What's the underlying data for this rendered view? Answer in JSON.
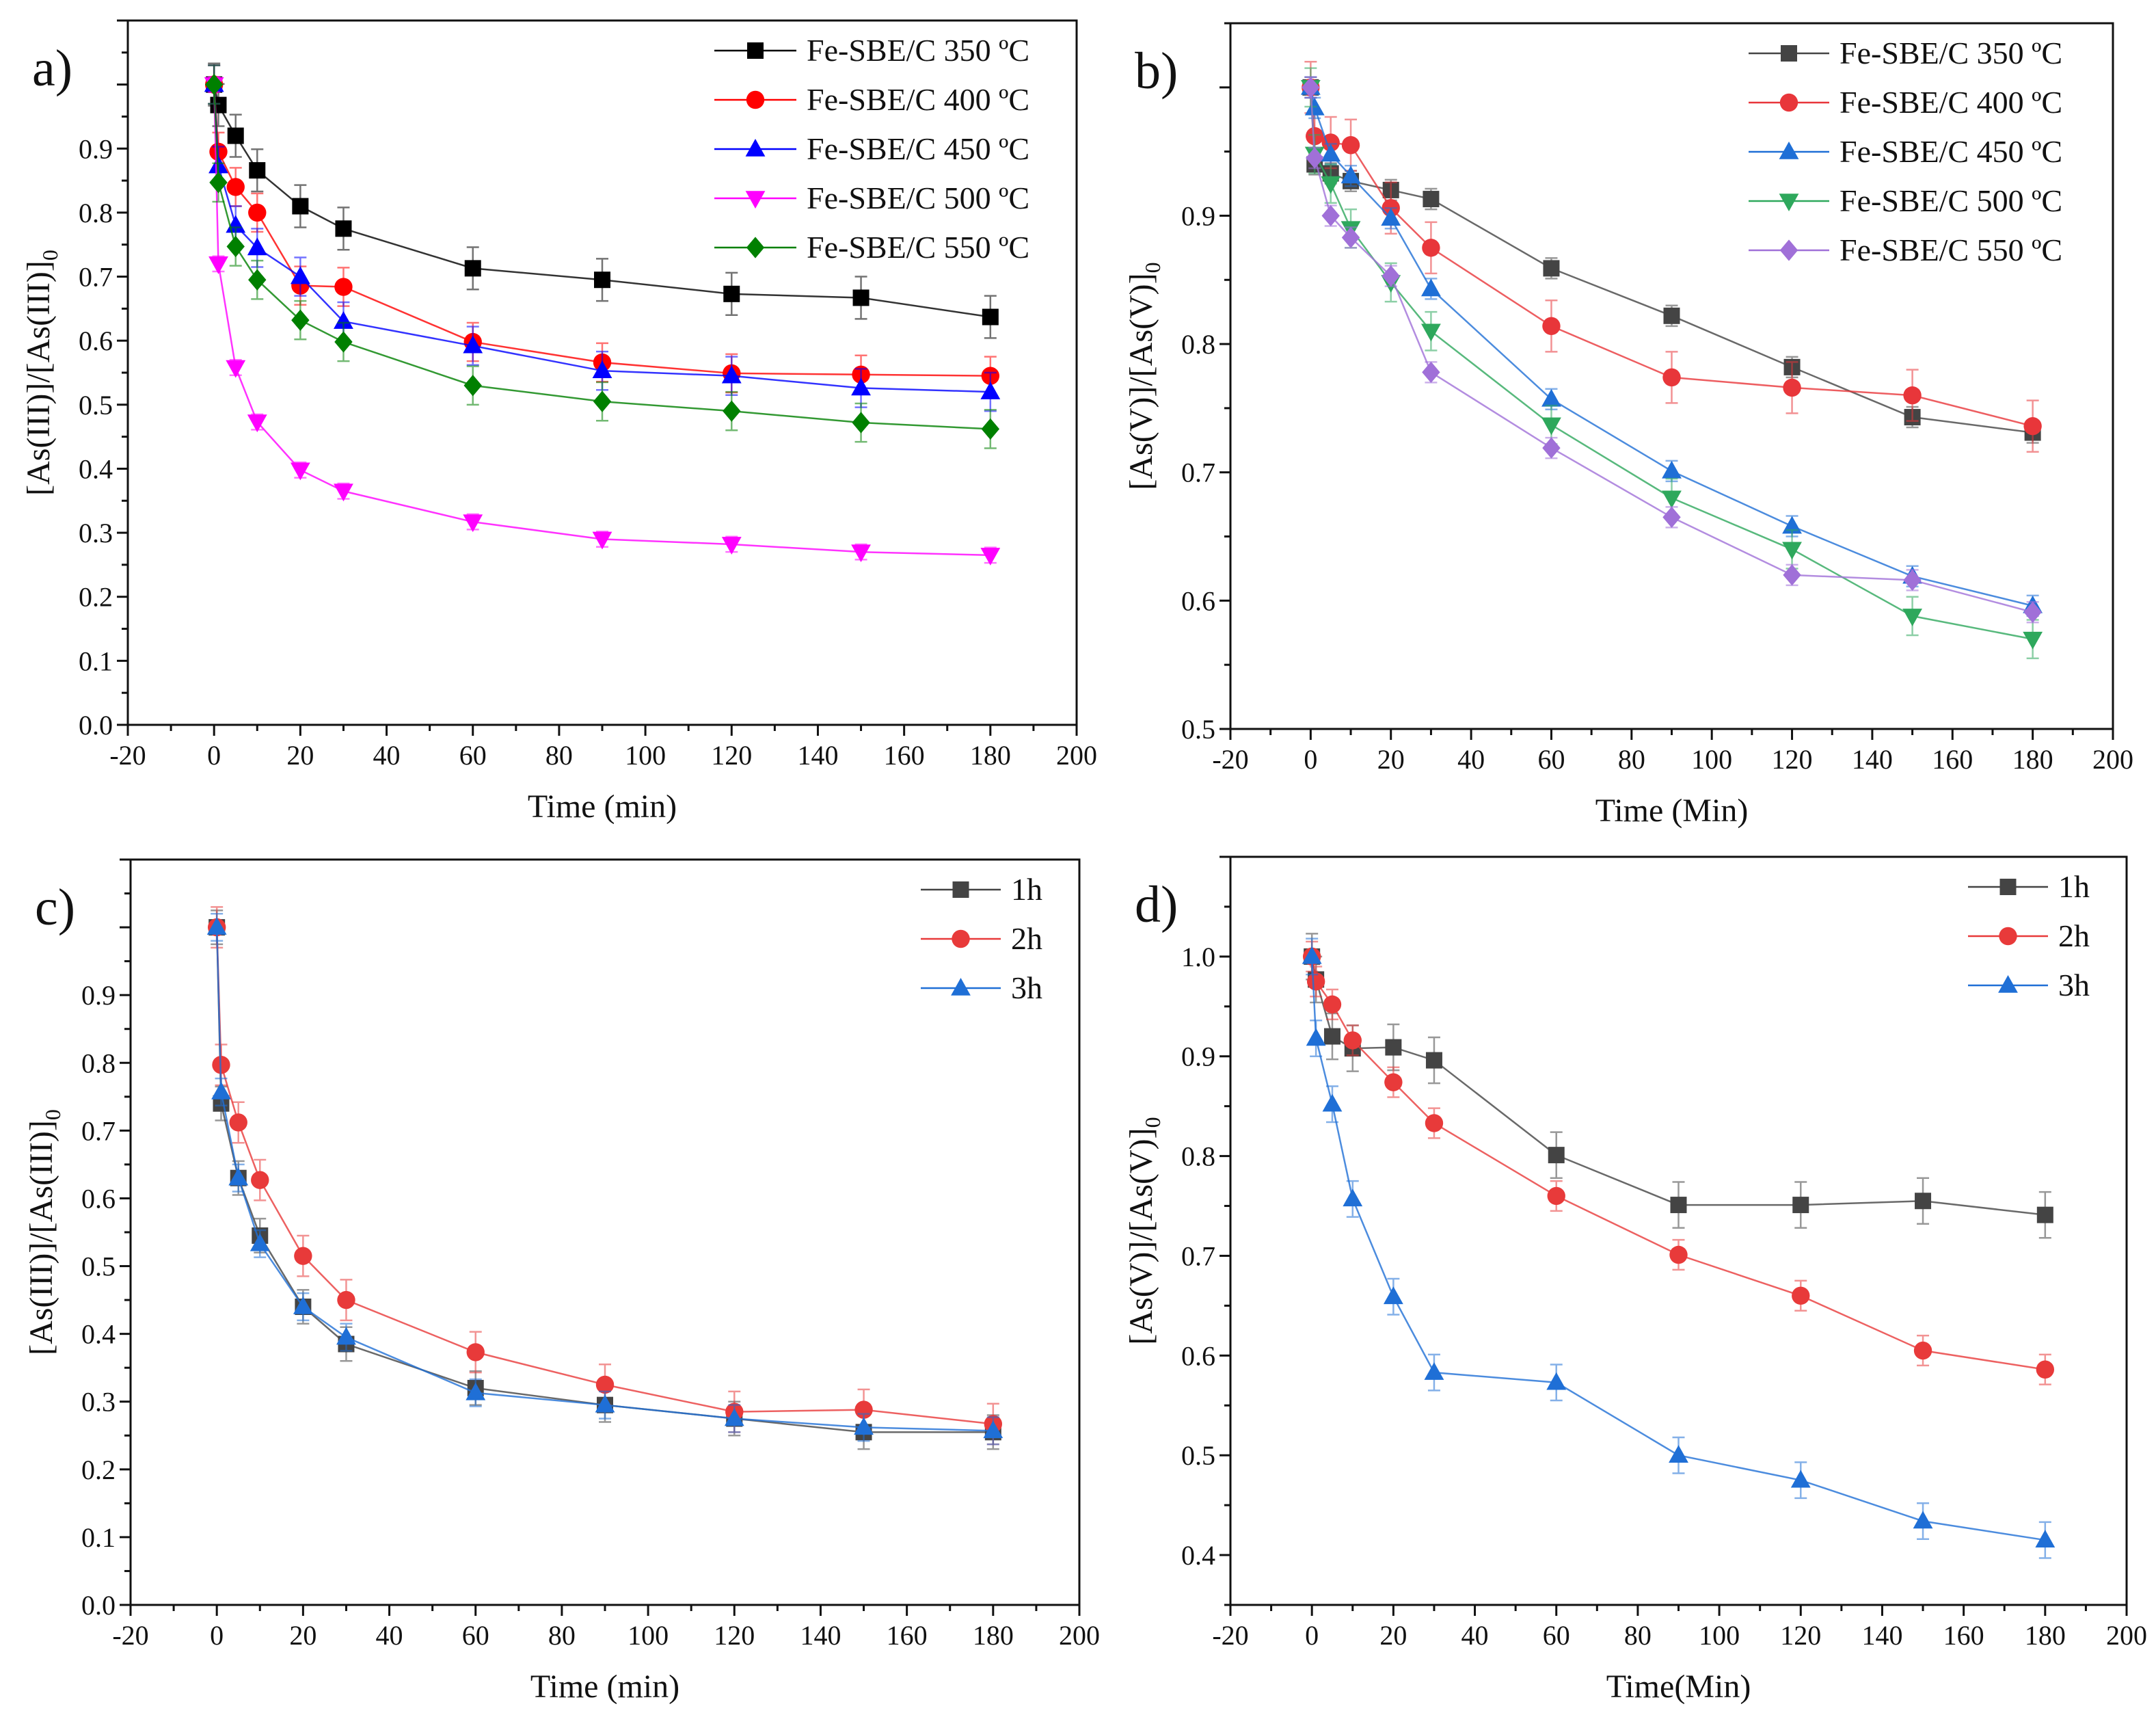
{
  "chart_data": [
    {
      "type": "line",
      "panel_label": "a)",
      "xlabel": "Time (min)",
      "ylabel": "[As(III)]/[As(III)]",
      "ylabel_sub": "0",
      "xlim": [
        -20,
        200
      ],
      "ylim": [
        0,
        1.1
      ],
      "x_tick_labels": [
        "-20",
        "0",
        "20",
        "40",
        "60",
        "80",
        "100",
        "120",
        "140",
        "160",
        "180",
        "200"
      ],
      "y_tick_labels": [
        "0.0",
        "0.1",
        "0.2",
        "0.3",
        "0.4",
        "0.5",
        "0.6",
        "0.7",
        "0.8",
        "0.9"
      ],
      "legend_position": "top-right",
      "grid": false,
      "x": [
        0,
        1,
        5,
        10,
        20,
        30,
        60,
        90,
        120,
        150,
        180
      ],
      "series": [
        {
          "name": "Fe-SBE/C 350 ºC",
          "color": "#000000",
          "marker": "square",
          "error": 0.033,
          "values": [
            1.0,
            0.968,
            0.92,
            0.866,
            0.81,
            0.775,
            0.713,
            0.695,
            0.673,
            0.667,
            0.637
          ]
        },
        {
          "name": "Fe-SBE/C 400 ºC",
          "color": "#ff0000",
          "marker": "circle",
          "error": 0.03,
          "values": [
            1.0,
            0.895,
            0.84,
            0.8,
            0.686,
            0.684,
            0.598,
            0.566,
            0.549,
            0.547,
            0.545
          ]
        },
        {
          "name": "Fe-SBE/C 450 ºC",
          "color": "#0000ff",
          "marker": "triangle-up",
          "error": 0.03,
          "values": [
            1.0,
            0.873,
            0.78,
            0.745,
            0.7,
            0.63,
            0.592,
            0.553,
            0.545,
            0.526,
            0.52
          ]
        },
        {
          "name": "Fe-SBE/C 500 ºC",
          "color": "#ff00ff",
          "marker": "triangle-down",
          "error": 0.012,
          "values": [
            1.0,
            0.72,
            0.558,
            0.473,
            0.398,
            0.365,
            0.317,
            0.29,
            0.282,
            0.27,
            0.265
          ]
        },
        {
          "name": "Fe-SBE/C 550 ºC",
          "color": "#008000",
          "marker": "diamond",
          "error": 0.03,
          "values": [
            1.0,
            0.847,
            0.747,
            0.695,
            0.632,
            0.598,
            0.53,
            0.505,
            0.49,
            0.472,
            0.462
          ]
        }
      ]
    },
    {
      "type": "line",
      "panel_label": "b)",
      "xlabel": "Time (Min)",
      "ylabel": "[As(V)]/[As(V)]",
      "ylabel_sub": "0",
      "xlim": [
        -20,
        200
      ],
      "ylim": [
        0.5,
        1.05
      ],
      "x_tick_labels": [
        "-20",
        "0",
        "20",
        "40",
        "60",
        "80",
        "100",
        "120",
        "140",
        "160",
        "180",
        "200"
      ],
      "y_tick_labels": [
        "0.5",
        "0.6",
        "0.7",
        "0.8",
        "0.9"
      ],
      "legend_position": "top-right",
      "grid": false,
      "x": [
        0,
        1,
        5,
        10,
        20,
        30,
        60,
        90,
        120,
        150,
        180
      ],
      "series": [
        {
          "name": "Fe-SBE/C 350 ºC",
          "color": "#444444",
          "marker": "square",
          "error": 0.008,
          "values": [
            1.0,
            0.94,
            0.933,
            0.927,
            0.92,
            0.913,
            0.859,
            0.822,
            0.782,
            0.743,
            0.731
          ]
        },
        {
          "name": "Fe-SBE/C 400 ºC",
          "color": "#e8363a",
          "marker": "circle",
          "error": 0.02,
          "values": [
            1.0,
            0.962,
            0.957,
            0.955,
            0.906,
            0.875,
            0.814,
            0.774,
            0.766,
            0.76,
            0.736
          ]
        },
        {
          "name": "Fe-SBE/C 450 ºC",
          "color": "#1f6fd6",
          "marker": "triangle-up",
          "error": 0.008,
          "values": [
            1.0,
            0.984,
            0.948,
            0.931,
            0.898,
            0.843,
            0.757,
            0.701,
            0.658,
            0.619,
            0.596
          ]
        },
        {
          "name": "Fe-SBE/C 500 ºC",
          "color": "#2ea85c",
          "marker": "triangle-down",
          "error": 0.015,
          "values": [
            1.0,
            0.948,
            0.925,
            0.89,
            0.848,
            0.81,
            0.737,
            0.68,
            0.64,
            0.588,
            0.57
          ]
        },
        {
          "name": "Fe-SBE/C 550 ºC",
          "color": "#a070d8",
          "marker": "diamond",
          "error": 0.008,
          "values": [
            1.0,
            0.945,
            0.9,
            0.883,
            0.853,
            0.778,
            0.719,
            0.665,
            0.62,
            0.616,
            0.591
          ]
        }
      ]
    },
    {
      "type": "line",
      "panel_label": "c)",
      "xlabel": "Time (min)",
      "ylabel": "[As(III)]/[As(III)]",
      "ylabel_sub": "0",
      "xlim": [
        -20,
        200
      ],
      "ylim": [
        0,
        1.1
      ],
      "x_tick_labels": [
        "-20",
        "0",
        "20",
        "40",
        "60",
        "80",
        "100",
        "120",
        "140",
        "160",
        "180",
        "200"
      ],
      "y_tick_labels": [
        "0.0",
        "0.1",
        "0.2",
        "0.3",
        "0.4",
        "0.5",
        "0.6",
        "0.7",
        "0.8",
        "0.9"
      ],
      "legend_position": "top-right",
      "grid": false,
      "x": [
        0,
        1,
        5,
        10,
        20,
        30,
        60,
        90,
        120,
        150,
        180
      ],
      "series": [
        {
          "name": "1h",
          "color": "#444444",
          "marker": "square",
          "error": 0.025,
          "values": [
            1.0,
            0.74,
            0.63,
            0.545,
            0.44,
            0.385,
            0.32,
            0.295,
            0.275,
            0.255,
            0.255
          ]
        },
        {
          "name": "2h",
          "color": "#e83a3a",
          "marker": "circle",
          "error": 0.03,
          "values": [
            1.0,
            0.797,
            0.712,
            0.627,
            0.515,
            0.45,
            0.373,
            0.325,
            0.285,
            0.288,
            0.267
          ]
        },
        {
          "name": "3h",
          "color": "#1f6fd6",
          "marker": "triangle-up",
          "error": 0.02,
          "values": [
            1.0,
            0.757,
            0.63,
            0.533,
            0.44,
            0.395,
            0.313,
            0.295,
            0.275,
            0.262,
            0.257
          ]
        }
      ]
    },
    {
      "type": "line",
      "panel_label": "d)",
      "xlabel": "Time(Min)",
      "ylabel": "[As(V)]/[As(V)]",
      "ylabel_sub": "0",
      "xlim": [
        -20,
        200
      ],
      "ylim": [
        0.35,
        1.1
      ],
      "x_tick_labels": [
        "-20",
        "0",
        "20",
        "40",
        "60",
        "80",
        "100",
        "120",
        "140",
        "160",
        "180",
        "200"
      ],
      "y_tick_labels": [
        "0.4",
        "0.5",
        "0.6",
        "0.7",
        "0.8",
        "0.9",
        "1.0"
      ],
      "legend_position": "top-right",
      "grid": false,
      "x": [
        0,
        1,
        5,
        10,
        20,
        30,
        60,
        90,
        120,
        150,
        180
      ],
      "series": [
        {
          "name": "1h",
          "color": "#444444",
          "marker": "square",
          "error": 0.023,
          "values": [
            1.0,
            0.977,
            0.92,
            0.908,
            0.909,
            0.896,
            0.801,
            0.751,
            0.751,
            0.755,
            0.741
          ]
        },
        {
          "name": "2h",
          "color": "#e83a3a",
          "marker": "circle",
          "error": 0.015,
          "values": [
            1.0,
            0.975,
            0.952,
            0.916,
            0.874,
            0.833,
            0.76,
            0.701,
            0.66,
            0.605,
            0.586
          ]
        },
        {
          "name": "3h",
          "color": "#1f6fd6",
          "marker": "triangle-up",
          "error": 0.018,
          "values": [
            1.0,
            0.918,
            0.852,
            0.757,
            0.659,
            0.583,
            0.573,
            0.5,
            0.475,
            0.434,
            0.415
          ]
        }
      ]
    }
  ]
}
